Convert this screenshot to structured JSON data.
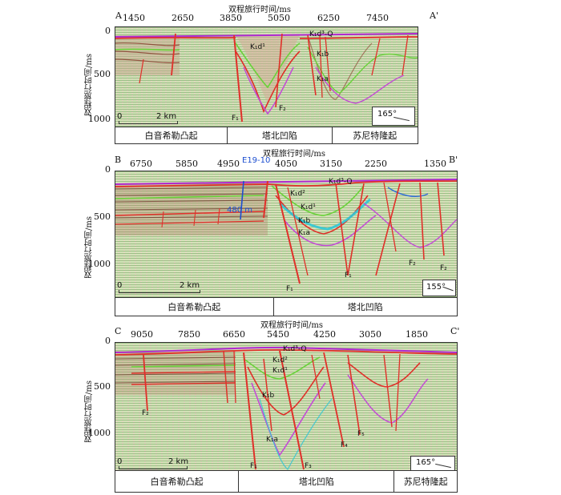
{
  "xaxis_title": "双程旅行时间/ms",
  "yaxis_title": "双程旅行时间/ms",
  "scale_zero": "0",
  "scale_label": "2 km",
  "panels": [
    {
      "left_label": "A",
      "right_label": "A'",
      "top_ticks": [
        "1450",
        "2650",
        "3850",
        "5050",
        "6250",
        "7450"
      ],
      "y_ticks": [
        "0",
        "500",
        "1000"
      ],
      "azimuth": "165°",
      "units": [
        "白音希勒凸起",
        "塔北凹陷",
        "苏尼特隆起"
      ],
      "formations": [
        "K₁d³-Q",
        "K₁d¹",
        "K₁b",
        "K₁a"
      ],
      "faults": [
        "F₁",
        "F₂"
      ]
    },
    {
      "left_label": "B",
      "right_label": "B'",
      "top_ticks": [
        "6750",
        "5850",
        "4950",
        "4050",
        "3150",
        "2250",
        "1350"
      ],
      "y_ticks": [
        "0",
        "500",
        "1000"
      ],
      "azimuth": "155°",
      "well": "E19-10",
      "well_depth": "480 m",
      "units": [
        "白音希勒凸起",
        "塔北凹陷"
      ],
      "formations": [
        "K₁d³-Q",
        "K₁d²",
        "K₁d¹",
        "K₁b",
        "K₁a"
      ],
      "faults": [
        "F₁",
        "F₁",
        "F₂",
        "F₂"
      ]
    },
    {
      "left_label": "C",
      "right_label": "C'",
      "top_ticks": [
        "9050",
        "7850",
        "6650",
        "5450",
        "4250",
        "3050",
        "1850"
      ],
      "y_ticks": [
        "0",
        "500",
        "1000"
      ],
      "azimuth": "165°",
      "units": [
        "白音希勒凸起",
        "塔北凹陷",
        "苏尼特隆起"
      ],
      "formations": [
        "K₁d³-Q",
        "K₁d²",
        "K₁d¹",
        "K₁b",
        "K₁a"
      ],
      "faults": [
        "F₂",
        "F₁",
        "F₃",
        "F₄",
        "F₅"
      ]
    }
  ]
}
